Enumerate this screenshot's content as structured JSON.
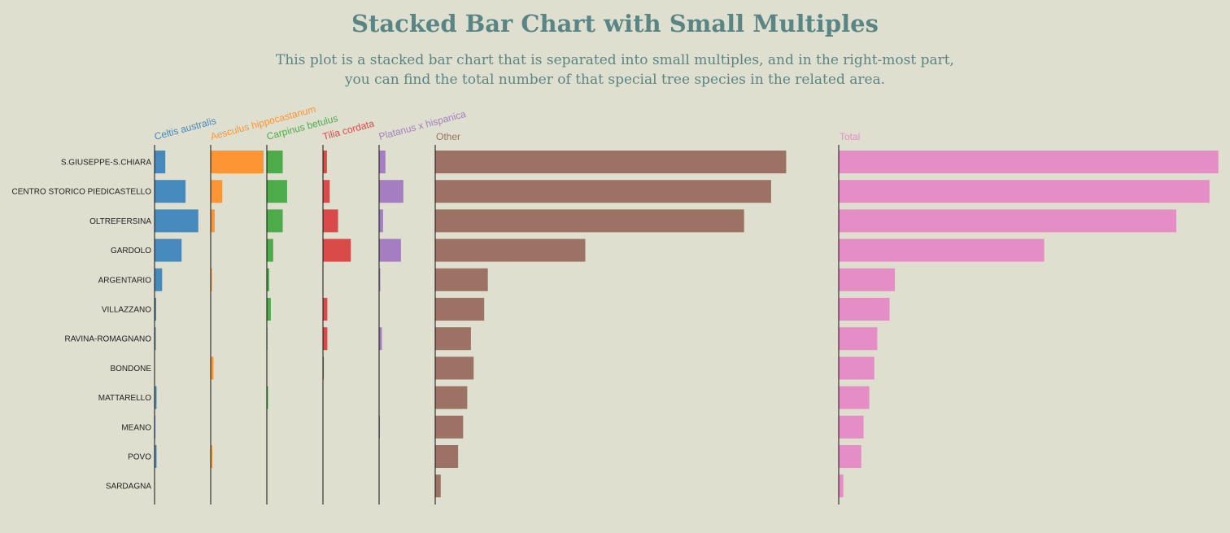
{
  "title": "Stacked Bar Chart with Small Multiples",
  "subtitle": [
    "This plot is a stacked bar chart that is separated into small multiples, and in the right-most part,",
    "you can find the total number of that special tree species in the related area."
  ],
  "colors": {
    "Celtis australis": "#4589bd",
    "Aesculus hippocastanum": "#fd9535",
    "Carpinus betulus": "#4dab49",
    "Tilia cordata": "#d94a49",
    "Platanus x hispanica": "#a47ec1",
    "Other": "#9b7263",
    "Total": "#e58dc5"
  },
  "chart_data": {
    "type": "bar",
    "categories": [
      "S.GIUSEPPE-S.CHIARA",
      "CENTRO STORICO PIEDICASTELLO",
      "OLTREFERSINA",
      "GARDOLO",
      "ARGENTARIO",
      "VILLAZZANO",
      "RAVINA-ROMAGNANO",
      "BONDONE",
      "MATTARELLO",
      "MEANO",
      "POVO",
      "SARDAGNA"
    ],
    "series": [
      {
        "name": "Celtis australis",
        "values": [
          270,
          780,
          1100,
          680,
          190,
          40,
          30,
          0,
          50,
          20,
          50,
          0
        ]
      },
      {
        "name": "Aesculus hippocastanum",
        "values": [
          1330,
          290,
          100,
          5,
          30,
          0,
          3,
          70,
          0,
          0,
          40,
          0
        ]
      },
      {
        "name": "Carpinus betulus",
        "values": [
          400,
          510,
          400,
          160,
          60,
          100,
          15,
          0,
          30,
          0,
          0,
          0
        ]
      },
      {
        "name": "Tilia cordata",
        "values": [
          100,
          170,
          380,
          700,
          10,
          110,
          110,
          20,
          10,
          0,
          0,
          0
        ]
      },
      {
        "name": "Platanus x hispanica",
        "values": [
          160,
          610,
          100,
          550,
          30,
          10,
          70,
          0,
          10,
          20,
          0,
          0
        ]
      },
      {
        "name": "Other",
        "values": [
          7670,
          7340,
          6750,
          3280,
          1150,
          1070,
          780,
          840,
          700,
          610,
          500,
          120
        ]
      },
      {
        "name": "Total",
        "values": [
          9930,
          9700,
          8830,
          5375,
          1470,
          1330,
          1008,
          930,
          800,
          650,
          590,
          120
        ]
      }
    ]
  }
}
